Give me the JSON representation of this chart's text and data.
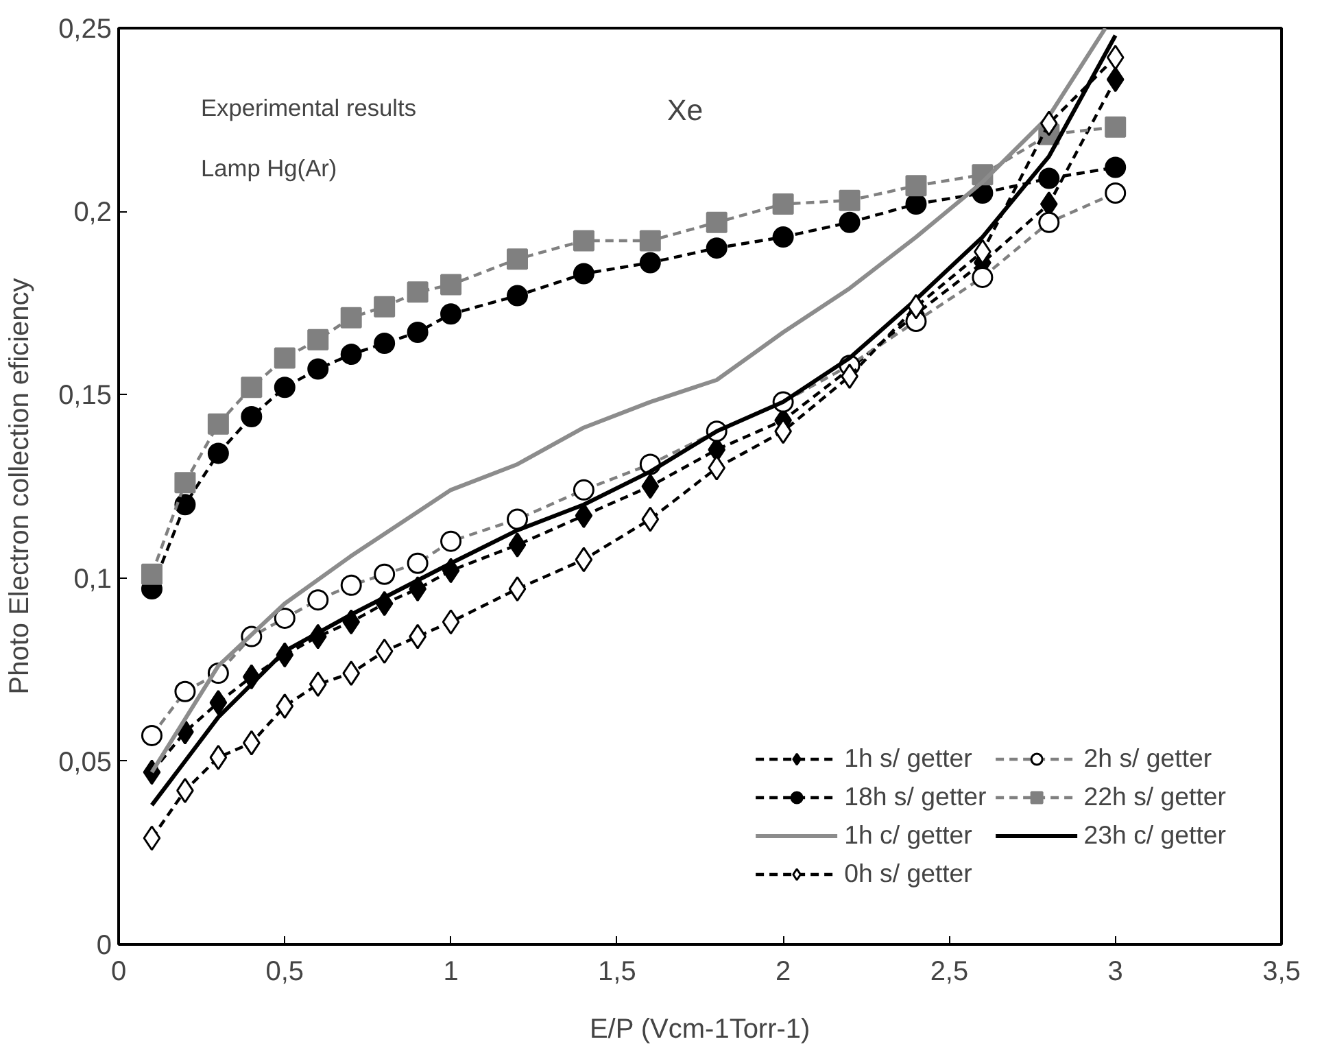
{
  "chart_data": {
    "type": "line",
    "xlabel": "E/P (Vcm-1Torr-1)",
    "ylabel": "Photo Electron collection eficiency",
    "annotations": [
      "Experimental results",
      "Lamp Hg(Ar)",
      "Xe"
    ],
    "x": [
      0.1,
      0.2,
      0.3,
      0.4,
      0.5,
      0.6,
      0.7,
      0.8,
      0.9,
      1.0,
      1.2,
      1.4,
      1.6,
      1.8,
      2.0,
      2.2,
      2.4,
      2.6,
      2.8,
      3.0
    ],
    "series": [
      {
        "name": "1h s/ getter",
        "color": "#000000",
        "marker": "diamond",
        "line_style": "dashed",
        "values": [
          0.047,
          0.058,
          0.066,
          0.073,
          0.079,
          0.084,
          0.088,
          0.093,
          0.097,
          0.102,
          0.109,
          0.117,
          0.125,
          0.135,
          0.143,
          0.157,
          0.172,
          0.186,
          0.202,
          0.236
        ]
      },
      {
        "name": "2h s/ getter",
        "color": "#808080",
        "marker": "circle",
        "line_style": "dashed",
        "values": [
          0.057,
          0.069,
          0.074,
          0.084,
          0.089,
          0.094,
          0.098,
          0.101,
          0.104,
          0.11,
          0.116,
          0.124,
          0.131,
          0.14,
          0.148,
          0.158,
          0.17,
          0.182,
          0.197,
          0.205
        ]
      },
      {
        "name": "18h s/ getter",
        "color": "#000000",
        "marker": "circle",
        "line_style": "dashed",
        "values": [
          0.097,
          0.12,
          0.134,
          0.144,
          0.152,
          0.157,
          0.161,
          0.164,
          0.167,
          0.172,
          0.177,
          0.183,
          0.186,
          0.19,
          0.193,
          0.197,
          0.202,
          0.205,
          0.209,
          0.212
        ]
      },
      {
        "name": "22h s/ getter",
        "color": "#808080",
        "marker": "square",
        "line_style": "dashed",
        "values": [
          0.101,
          0.126,
          0.142,
          0.152,
          0.16,
          0.165,
          0.171,
          0.174,
          0.178,
          0.18,
          0.187,
          0.192,
          0.192,
          0.197,
          0.202,
          0.203,
          0.207,
          0.21,
          0.221,
          0.223
        ]
      },
      {
        "name": "1h c/ getter",
        "color": "#8c8c8c",
        "marker": "none",
        "line_style": "solid",
        "x": [
          0.1,
          0.3,
          0.5,
          0.7,
          1.0,
          1.2,
          1.4,
          1.6,
          1.8,
          2.0,
          2.2,
          2.4,
          2.6,
          2.8,
          2.97
        ],
        "values": [
          0.047,
          0.076,
          0.093,
          0.106,
          0.124,
          0.131,
          0.141,
          0.148,
          0.154,
          0.167,
          0.179,
          0.193,
          0.208,
          0.226,
          0.25
        ]
      },
      {
        "name": "23h c/ getter",
        "color": "#000000",
        "marker": "none",
        "line_style": "solid",
        "x": [
          0.1,
          0.3,
          0.5,
          0.7,
          1.0,
          1.2,
          1.4,
          1.6,
          1.8,
          2.0,
          2.2,
          2.4,
          2.6,
          2.8,
          3.0
        ],
        "values": [
          0.038,
          0.062,
          0.08,
          0.09,
          0.104,
          0.113,
          0.12,
          0.129,
          0.14,
          0.148,
          0.16,
          0.176,
          0.193,
          0.215,
          0.248
        ]
      },
      {
        "name": "0h s/ getter",
        "color": "#000000",
        "marker": "diamond",
        "line_style": "dashed",
        "values": [
          0.029,
          0.042,
          0.051,
          0.055,
          0.065,
          0.071,
          0.074,
          0.08,
          0.084,
          0.088,
          0.097,
          0.105,
          0.116,
          0.13,
          0.14,
          0.155,
          0.174,
          0.189,
          0.224,
          0.242
        ]
      }
    ],
    "xlim": [
      0,
      3.5
    ],
    "ylim": [
      0,
      0.25
    ],
    "xticks": [
      0,
      {
        "value": 0.5,
        "label": "0,5"
      },
      1,
      {
        "value": 1.5,
        "label": "1,5"
      },
      2,
      {
        "value": 2.5,
        "label": "2,5"
      },
      3,
      {
        "value": 3.5,
        "label": "3,5"
      }
    ],
    "yticks": [
      0,
      {
        "value": 0.05,
        "label": "0,05"
      },
      {
        "value": 0.1,
        "label": "0,1"
      },
      {
        "value": 0.15,
        "label": "0,15"
      },
      {
        "value": 0.2,
        "label": "0,2"
      },
      {
        "value": 0.25,
        "label": "0,25"
      }
    ],
    "grid": false,
    "legend": "bottom right"
  }
}
